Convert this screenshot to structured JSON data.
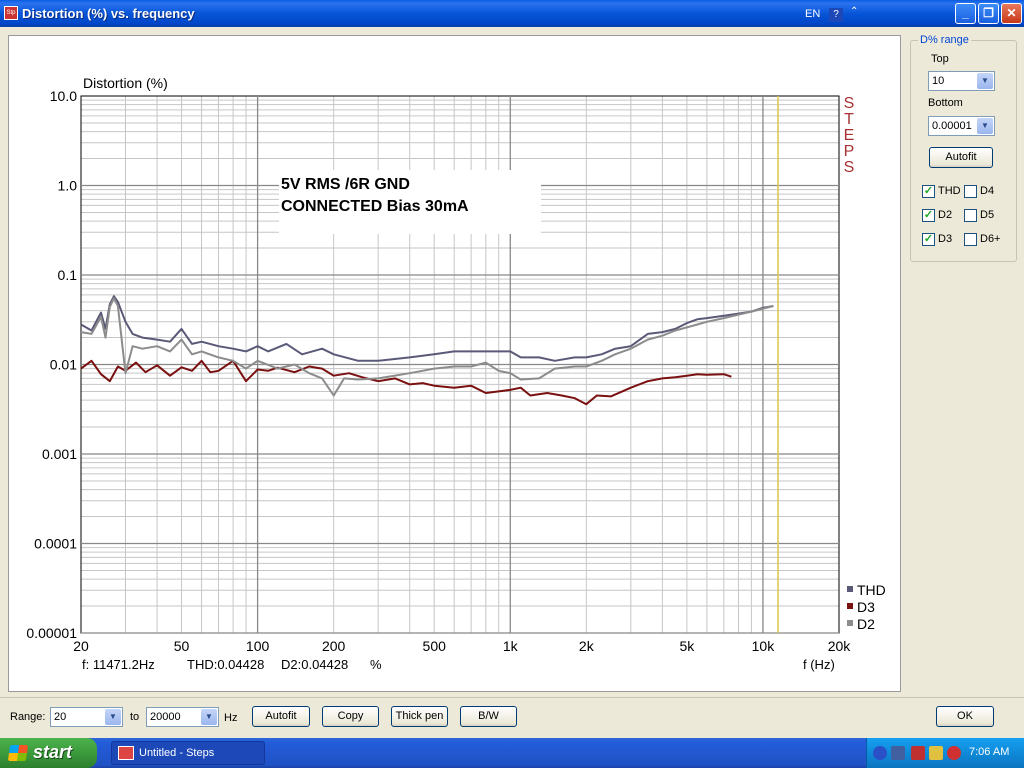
{
  "window": {
    "title": "Distortion (%) vs. frequency",
    "icon_name": "steps-app-icon",
    "minimize": "_",
    "maximize": "❐",
    "close": "✕"
  },
  "chart_data": {
    "type": "line",
    "title": "",
    "ylabel": "Distortion (%)",
    "xlabel": "f (Hz)",
    "x_scale": "log",
    "y_scale": "log",
    "xlim": [
      20,
      20000
    ],
    "ylim": [
      1e-05,
      10.0
    ],
    "x_ticks": [
      "20",
      "50",
      "100",
      "200",
      "500",
      "1k",
      "2k",
      "5k",
      "10k",
      "20k"
    ],
    "x_tick_values": [
      20,
      50,
      100,
      200,
      500,
      1000,
      2000,
      5000,
      10000,
      20000
    ],
    "y_ticks": [
      "10.0",
      "1.0",
      "0.1",
      "0.01",
      "0.001",
      "0.0001",
      "0.00001"
    ],
    "y_tick_values": [
      10,
      1,
      0.1,
      0.01,
      0.001,
      0.0001,
      1e-05
    ],
    "grid": true,
    "side_label": "STEPS",
    "annotation": [
      "5V RMS /6R GND",
      "CONNECTED Bias 30mA"
    ],
    "cursor_x": 11471.2,
    "cursor_color": "#d8c84a",
    "readout": {
      "freq": "f:  11471.2Hz",
      "thd": "THD:0.04428",
      "d2": "D2:0.04428",
      "unit": "%"
    },
    "legend_position": "bottom-right",
    "series": [
      {
        "name": "THD",
        "color": "#5a5a78",
        "x": [
          20,
          22,
          24,
          25,
          26,
          27,
          28,
          30,
          32,
          35,
          40,
          45,
          50,
          55,
          60,
          70,
          80,
          90,
          100,
          110,
          130,
          150,
          180,
          200,
          250,
          300,
          400,
          500,
          600,
          700,
          800,
          900,
          1000,
          1100,
          1300,
          1500,
          1800,
          2000,
          2300,
          2600,
          3000,
          3500,
          4000,
          4500,
          5000,
          5500,
          6000,
          7000,
          8000,
          9000,
          10000,
          11000
        ],
        "values": [
          0.028,
          0.024,
          0.038,
          0.025,
          0.047,
          0.058,
          0.05,
          0.03,
          0.022,
          0.02,
          0.019,
          0.018,
          0.025,
          0.017,
          0.018,
          0.016,
          0.015,
          0.014,
          0.016,
          0.014,
          0.017,
          0.013,
          0.015,
          0.013,
          0.011,
          0.011,
          0.012,
          0.013,
          0.014,
          0.014,
          0.014,
          0.014,
          0.014,
          0.012,
          0.012,
          0.011,
          0.012,
          0.012,
          0.013,
          0.015,
          0.016,
          0.022,
          0.023,
          0.025,
          0.029,
          0.032,
          0.033,
          0.035,
          0.037,
          0.039,
          0.043,
          0.045
        ]
      },
      {
        "name": "D3",
        "color": "#7a1010",
        "x": [
          20,
          22,
          24,
          26,
          28,
          30,
          33,
          36,
          40,
          45,
          50,
          55,
          60,
          65,
          70,
          80,
          90,
          100,
          110,
          120,
          140,
          160,
          180,
          200,
          230,
          260,
          300,
          350,
          400,
          450,
          500,
          600,
          700,
          800,
          900,
          1000,
          1100,
          1200,
          1400,
          1600,
          1800,
          2000,
          2200,
          2500,
          3000,
          3500,
          4000,
          4500,
          5000,
          5500,
          6000,
          7000,
          7500
        ],
        "values": [
          0.009,
          0.011,
          0.0078,
          0.0065,
          0.0095,
          0.0085,
          0.0105,
          0.0082,
          0.0098,
          0.0075,
          0.0093,
          0.0085,
          0.011,
          0.0082,
          0.0085,
          0.011,
          0.0065,
          0.0088,
          0.0085,
          0.0092,
          0.0082,
          0.0095,
          0.009,
          0.0075,
          0.008,
          0.0072,
          0.0065,
          0.007,
          0.006,
          0.0062,
          0.0058,
          0.0055,
          0.0058,
          0.0048,
          0.005,
          0.0052,
          0.0055,
          0.0045,
          0.0048,
          0.0045,
          0.0042,
          0.0036,
          0.0045,
          0.0044,
          0.0055,
          0.0065,
          0.007,
          0.0072,
          0.0075,
          0.0078,
          0.0077,
          0.0078,
          0.0073
        ]
      },
      {
        "name": "D2",
        "color": "#8c8c8c",
        "x": [
          20,
          22,
          24,
          25,
          26,
          27,
          28,
          30,
          32,
          35,
          40,
          45,
          50,
          55,
          60,
          70,
          80,
          90,
          100,
          120,
          140,
          160,
          180,
          200,
          220,
          250,
          300,
          400,
          500,
          600,
          700,
          800,
          900,
          1000,
          1100,
          1300,
          1500,
          1800,
          2000,
          2300,
          2600,
          3000,
          3500,
          4000,
          4500,
          5000,
          5500,
          6000,
          7000,
          8000,
          9000,
          10000,
          11000
        ],
        "values": [
          0.023,
          0.022,
          0.034,
          0.02,
          0.044,
          0.055,
          0.045,
          0.008,
          0.016,
          0.015,
          0.016,
          0.014,
          0.019,
          0.013,
          0.014,
          0.012,
          0.011,
          0.009,
          0.011,
          0.009,
          0.01,
          0.008,
          0.007,
          0.0045,
          0.007,
          0.0068,
          0.007,
          0.008,
          0.009,
          0.0095,
          0.0095,
          0.0105,
          0.0085,
          0.008,
          0.0068,
          0.007,
          0.009,
          0.0095,
          0.0095,
          0.011,
          0.013,
          0.015,
          0.019,
          0.021,
          0.024,
          0.026,
          0.028,
          0.03,
          0.033,
          0.036,
          0.039,
          0.042,
          0.045
        ]
      }
    ]
  },
  "panel": {
    "group_label": "D% range",
    "top_label": "Top",
    "top_value": "10",
    "bottom_label": "Bottom",
    "bottom_value": "0.00001",
    "autofit_label": "Autofit",
    "checkboxes": [
      {
        "label": "THD",
        "checked": true
      },
      {
        "label": "D4",
        "checked": false
      },
      {
        "label": "D2",
        "checked": true
      },
      {
        "label": "D5",
        "checked": false
      },
      {
        "label": "D3",
        "checked": true
      },
      {
        "label": "D6+",
        "checked": false
      }
    ]
  },
  "bottom": {
    "range_label": "Range:",
    "range_from": "20",
    "to_label": "to",
    "range_to": "20000",
    "hz_label": "Hz",
    "autofit": "Autofit",
    "copy": "Copy",
    "thick_pen": "Thick pen",
    "bw": "B/W",
    "ok": "OK"
  },
  "taskbar": {
    "start": "start",
    "task_title": "Untitled - Steps",
    "lang": "EN",
    "clock": "7:06 AM"
  }
}
